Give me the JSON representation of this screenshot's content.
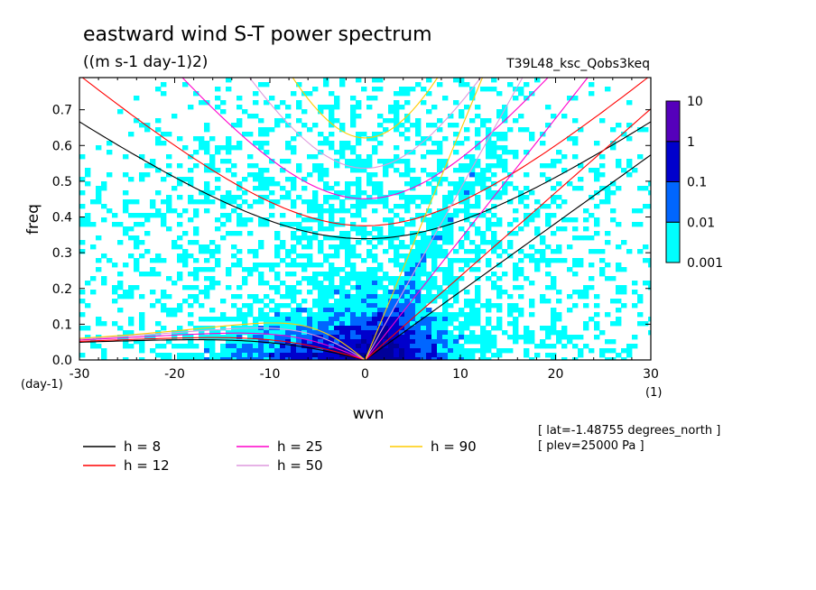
{
  "chart_data": {
    "type": "heatmap",
    "title": "eastward wind S-T power spectrum",
    "subtitle": "((m s-1 day-1)2)",
    "experiment": "T39L48_ksc_Qobs3keq",
    "xlabel": "wvn",
    "ylabel": "freq",
    "x_unit": "(1)",
    "y_unit": "(day-1)",
    "xlim": [
      -30,
      30
    ],
    "ylim": [
      0,
      0.79
    ],
    "x_ticks": [
      -30,
      -20,
      -10,
      0,
      10,
      20,
      30
    ],
    "x_tick_labels": [
      "-30",
      "-20",
      "-10",
      "0",
      "10",
      "20",
      "30"
    ],
    "y_ticks": [
      0,
      0.1,
      0.2,
      0.3,
      0.4,
      0.5,
      0.6,
      0.7
    ],
    "y_tick_labels": [
      "0.0",
      "0.1",
      "0.2",
      "0.3",
      "0.4",
      "0.5",
      "0.6",
      "0.7"
    ],
    "colorbar": {
      "scale": "log",
      "levels": [
        0.001,
        0.01,
        0.1,
        1,
        10
      ],
      "labels": [
        "0.001",
        "0.01",
        "0.1",
        "1",
        "10"
      ],
      "colors": [
        "#00ffff",
        "#0066ff",
        "#0000cc",
        "#000099",
        "#5500bb"
      ]
    },
    "power_regions": [
      {
        "level": "0.001-0.01",
        "color": "#00ffff",
        "description": "broad background over most of domain"
      },
      {
        "level": "0.01-0.1",
        "color": "#0066ff",
        "description": "low frequencies near wvn 0 and eastward Kelvin band"
      },
      {
        "level": "0.1-1",
        "color": "#0000cc",
        "description": "core near wvn 0-8, freq 0-0.15"
      },
      {
        "level": "1-10",
        "color": "#000099",
        "description": "small peak near wvn 0, freq ~0.02"
      }
    ],
    "dispersion_curves": [
      {
        "name": "h =  8",
        "color": "#000000"
      },
      {
        "name": "h = 12",
        "color": "#ff0000"
      },
      {
        "name": "h = 25",
        "color": "#ff00cc"
      },
      {
        "name": "h = 50",
        "color": "#dd99dd"
      },
      {
        "name": "h = 90",
        "color": "#ffcc00"
      }
    ],
    "annotations": [
      "[ lat=-1.48755 degrees_north ]",
      "[ plev=25000 Pa ]"
    ],
    "grid": false,
    "legend_position": "bottom"
  }
}
